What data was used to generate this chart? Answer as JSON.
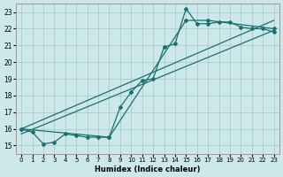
{
  "xlabel": "Humidex (Indice chaleur)",
  "ylabel": "",
  "bg_color": "#cce8e8",
  "grid_color": "#aacccc",
  "line_color": "#1a7070",
  "xlim": [
    -0.5,
    23.5
  ],
  "ylim": [
    14.5,
    23.5
  ],
  "xticks": [
    0,
    1,
    2,
    3,
    4,
    5,
    6,
    7,
    8,
    9,
    10,
    11,
    12,
    13,
    14,
    15,
    16,
    17,
    18,
    19,
    20,
    21,
    22,
    23
  ],
  "yticks": [
    15,
    16,
    17,
    18,
    19,
    20,
    21,
    22,
    23
  ],
  "line1_x": [
    0,
    1,
    2,
    3,
    4,
    5,
    6,
    7,
    8,
    9,
    10,
    11,
    12,
    13,
    14,
    15,
    16,
    17,
    18,
    19,
    20,
    21,
    22,
    23
  ],
  "line1_y": [
    16.0,
    15.8,
    15.1,
    15.2,
    15.7,
    15.6,
    15.5,
    15.5,
    15.5,
    17.3,
    18.2,
    18.9,
    19.0,
    20.9,
    21.1,
    23.2,
    22.3,
    22.3,
    22.4,
    22.4,
    22.1,
    22.0,
    22.0,
    21.8
  ],
  "line2_x": [
    0,
    8,
    15,
    17,
    23
  ],
  "line2_y": [
    16.0,
    15.5,
    22.5,
    22.5,
    22.0
  ],
  "line3_x": [
    0,
    23
  ],
  "line3_y": [
    15.7,
    21.9
  ],
  "line4_x": [
    0,
    23
  ],
  "line4_y": [
    16.0,
    22.5
  ]
}
